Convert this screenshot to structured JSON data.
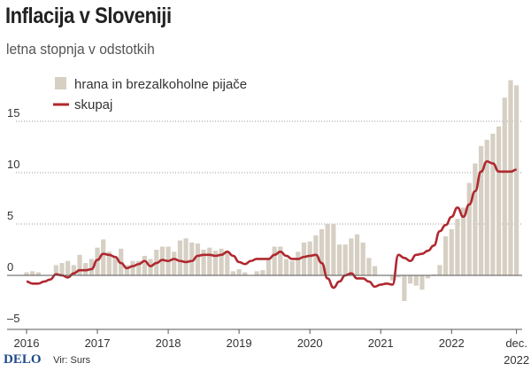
{
  "title": "Inflacija v Sloveniji",
  "subtitle": "letna stopnja v odstotkih",
  "footer": {
    "logo": "DELO",
    "source": "Vir: Surs"
  },
  "colors": {
    "bars": "#d6cfc3",
    "line": "#b0282f",
    "axis": "#555555",
    "grid": "#999999"
  },
  "chart_data": {
    "type": "bar+line",
    "title": "Inflacija v Sloveniji",
    "subtitle": "letna stopnja v odstotkih",
    "start": "2016-01",
    "frequency": "monthly",
    "ylim": [
      -5.3,
      19.5
    ],
    "yticks": [
      {
        "v": 15,
        "label": "15"
      },
      {
        "v": 10,
        "label": "10"
      },
      {
        "v": 5,
        "label": "5"
      },
      {
        "v": 0,
        "label": "0"
      },
      {
        "v": -5,
        "label": "–5"
      }
    ],
    "xticks": [
      {
        "m": 0,
        "label": "2016"
      },
      {
        "m": 12,
        "label": "2017"
      },
      {
        "m": 24,
        "label": "2018"
      },
      {
        "m": 36,
        "label": "2019"
      },
      {
        "m": 48,
        "label": "2020"
      },
      {
        "m": 60,
        "label": "2021"
      },
      {
        "m": 72,
        "label": "2022"
      },
      {
        "m": 83,
        "label": "dec.",
        "label2": "2022"
      }
    ],
    "grid": "dotted horizontal",
    "legend": "top-left",
    "series": [
      {
        "name": "hrana in brezalkoholne pijače",
        "type": "bar",
        "values": [
          0.3,
          0.4,
          0.3,
          0,
          0,
          1.0,
          1.2,
          1.4,
          1.0,
          2.0,
          1.2,
          1.6,
          2.7,
          3.5,
          2.3,
          1.8,
          2.6,
          1.0,
          1.4,
          1.4,
          1.9,
          1.6,
          2.5,
          2.8,
          2.8,
          2.3,
          3.4,
          3.6,
          3.2,
          3.1,
          2.5,
          2.7,
          2.4,
          2.6,
          2.4,
          0.4,
          0.6,
          0.3,
          0,
          0.4,
          0.5,
          1.6,
          2.8,
          2.8,
          1.6,
          1.4,
          2.3,
          3.2,
          3.3,
          3.9,
          4.5,
          5.0,
          5.0,
          3.0,
          3.0,
          3.6,
          4.0,
          3.2,
          1.7,
          0.9,
          0,
          0,
          -0.5,
          -0.2,
          -2.5,
          -0.8,
          -1.0,
          -1.4,
          -0.3,
          0.1,
          1.0,
          3.8,
          4.5,
          5.5,
          6.6,
          9.0,
          10.9,
          12.6,
          13.2,
          13.8,
          14.5,
          17.3,
          19.0,
          18.5
        ]
      },
      {
        "name": "skupaj",
        "type": "line",
        "values": [
          -0.6,
          -0.8,
          -0.8,
          -0.6,
          -0.4,
          0.1,
          0,
          -0.2,
          0.2,
          0.5,
          0.5,
          0.6,
          1.5,
          2.1,
          2.0,
          1.8,
          1.2,
          0.7,
          0.9,
          1.1,
          1.4,
          0.9,
          1.2,
          1.5,
          1.4,
          1.6,
          1.4,
          1.3,
          1.4,
          1.9,
          2.0,
          2.0,
          1.9,
          2.0,
          2.3,
          1.9,
          1.3,
          1.1,
          1.4,
          1.6,
          1.6,
          1.6,
          2.0,
          2.3,
          1.9,
          1.6,
          1.6,
          1.8,
          1.9,
          2.0,
          1.2,
          -0.3,
          -1.2,
          -0.6,
          0,
          0.2,
          -0.3,
          -0.3,
          -0.6,
          -1.1,
          -0.9,
          -0.8,
          -0.9,
          2.0,
          1.7,
          1.4,
          2.0,
          2.1,
          2.4,
          2.9,
          4.3,
          4.9,
          5.7,
          6.6,
          5.7,
          6.9,
          8.2,
          10.1,
          11.1,
          10.9,
          10.1,
          10.1,
          10.1,
          10.3
        ]
      }
    ]
  }
}
